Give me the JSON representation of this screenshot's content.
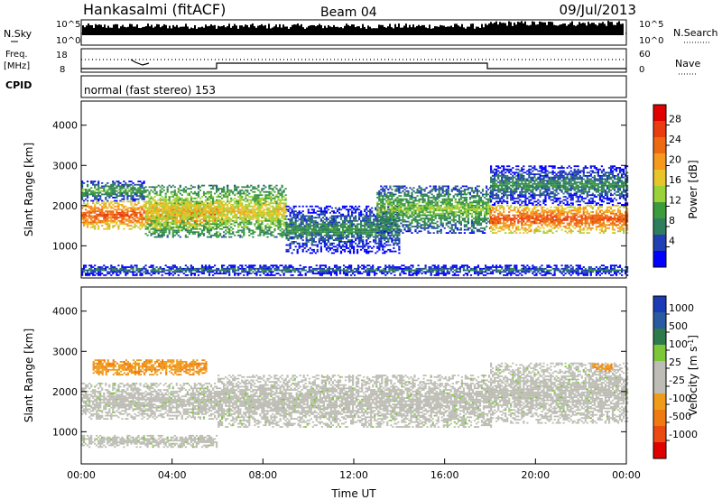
{
  "header": {
    "station": "Hankasalmi (fitACF)",
    "beam": "Beam 04",
    "date": "09/Jul/2013"
  },
  "noise_panel": {
    "left_label": "N.Sky",
    "right_label": "N.Search",
    "tick_top": "10^5",
    "tick_bottom": "10^0"
  },
  "freq_panel": {
    "left_label_1": "Freq.",
    "left_label_2": "[MHz]",
    "left_tick_top": "18",
    "left_tick_bottom": "8",
    "right_label": "Nave",
    "right_tick_top": "60",
    "right_tick_bottom": "0"
  },
  "cpid": {
    "label": "CPID",
    "value": "normal (fast stereo) 153"
  },
  "colors": {
    "power_scale": [
      "#0000ff",
      "#1f3fb3",
      "#2e7d5e",
      "#3c9b3c",
      "#9bd23b",
      "#e8c52a",
      "#f59a1c",
      "#ee6a12",
      "#e93d10",
      "#e00000"
    ],
    "velocity_scale": [
      "#1b3ab5",
      "#2a5aa0",
      "#2f7a4a",
      "#7cc63a",
      "#bdbdb5",
      "#bdbdb5",
      "#ef9c1a",
      "#f07a12",
      "#eb4a10",
      "#e00000"
    ],
    "ground_grey": "#bdbdb5"
  },
  "chart_data": [
    {
      "type": "heatmap",
      "panel": "power",
      "ylabel": "Slant Range [km]",
      "ylim": [
        200,
        4600
      ],
      "yticks": [
        "1000",
        "2000",
        "3000",
        "4000"
      ],
      "xlim": [
        "00:00",
        "24:00"
      ],
      "colorbar": {
        "label": "Power [dB]",
        "range": [
          0,
          32
        ],
        "ticks": [
          "4",
          "8",
          "12",
          "16",
          "20",
          "24",
          "28"
        ]
      },
      "echo_bands": [
        {
          "t_start": 0.0,
          "t_end": 6.0,
          "range_lo": 1400,
          "range_hi": 2100,
          "power_db": 26
        },
        {
          "t_start": 0.0,
          "t_end": 2.8,
          "range_lo": 2100,
          "range_hi": 2600,
          "power_db": 12
        },
        {
          "t_start": 2.8,
          "t_end": 9.0,
          "range_lo": 1200,
          "range_hi": 2500,
          "power_db": 18
        },
        {
          "t_start": 9.0,
          "t_end": 14.0,
          "range_lo": 800,
          "range_hi": 2000,
          "power_db": 10
        },
        {
          "t_start": 13.0,
          "t_end": 18.0,
          "range_lo": 1300,
          "range_hi": 2500,
          "power_db": 14
        },
        {
          "t_start": 18.0,
          "t_end": 24.0,
          "range_lo": 1300,
          "range_hi": 2000,
          "power_db": 26
        },
        {
          "t_start": 18.0,
          "t_end": 24.0,
          "range_lo": 2000,
          "range_hi": 3000,
          "power_db": 10
        },
        {
          "t_start": 0.0,
          "t_end": 24.0,
          "range_lo": 250,
          "range_hi": 500,
          "power_db": 8
        }
      ]
    },
    {
      "type": "heatmap",
      "panel": "velocity",
      "ylabel": "Slant Range [km]",
      "ylim": [
        200,
        4600
      ],
      "yticks": [
        "1000",
        "2000",
        "3000",
        "4000"
      ],
      "xlabel": "Time UT",
      "xlim": [
        "00:00",
        "24:00"
      ],
      "xticks": [
        "00:00",
        "04:00",
        "08:00",
        "12:00",
        "16:00",
        "20:00",
        "00:00"
      ],
      "colorbar": {
        "label": "Velocity [m s",
        "label_sup": "-1",
        "label_end": "]",
        "ticks": [
          "1000",
          "500",
          "100",
          "25",
          "-25",
          "-100",
          "-500",
          "-1000"
        ]
      },
      "echo_bands": [
        {
          "t_start": 0.0,
          "t_end": 6.0,
          "range_lo": 1300,
          "range_hi": 2200,
          "velocity": 0
        },
        {
          "t_start": 0.5,
          "t_end": 5.5,
          "range_lo": 2400,
          "range_hi": 2800,
          "velocity": -200
        },
        {
          "t_start": 6.0,
          "t_end": 18.0,
          "range_lo": 1100,
          "range_hi": 2400,
          "velocity": 0
        },
        {
          "t_start": 18.0,
          "t_end": 24.0,
          "range_lo": 1200,
          "range_hi": 2700,
          "velocity": 0
        },
        {
          "t_start": 22.5,
          "t_end": 23.3,
          "range_lo": 2500,
          "range_hi": 2700,
          "velocity": -300
        },
        {
          "t_start": 0.0,
          "t_end": 6.0,
          "range_lo": 600,
          "range_hi": 900,
          "velocity": 0
        }
      ]
    }
  ]
}
